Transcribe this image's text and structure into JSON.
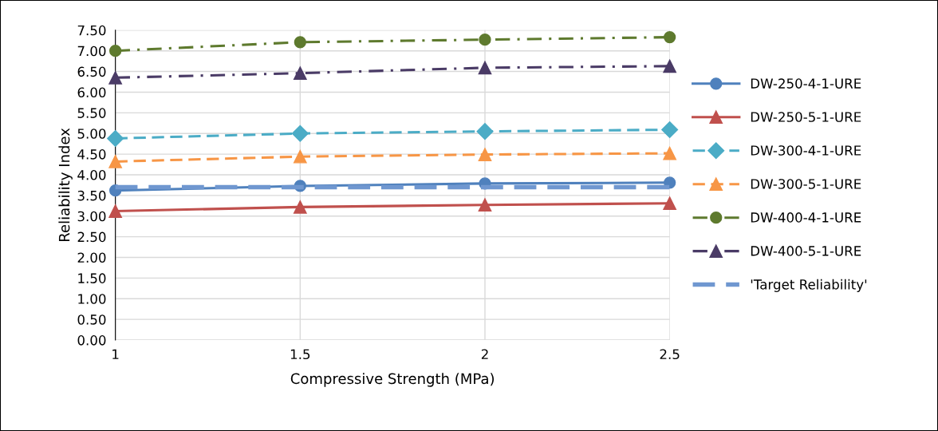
{
  "chart_data": {
    "type": "line",
    "xlabel": "Compressive Strength (MPa)",
    "ylabel": "Reliability Index",
    "x": [
      1,
      1.5,
      2,
      2.5
    ],
    "series": [
      {
        "name": "DW-250-4-1-URE",
        "color": "#4f81bd",
        "values": [
          3.62,
          3.73,
          3.79,
          3.81
        ],
        "marker": "circle",
        "line_style": "solid"
      },
      {
        "name": "DW-250-5-1-URE",
        "color": "#c0504d",
        "values": [
          3.12,
          3.22,
          3.27,
          3.31
        ],
        "marker": "triangle",
        "line_style": "solid"
      },
      {
        "name": "DW-300-4-1-URE",
        "color": "#4bacc6",
        "values": [
          4.88,
          5.0,
          5.05,
          5.09
        ],
        "marker": "diamond",
        "line_style": "dashed"
      },
      {
        "name": "DW-300-5-1-URE",
        "color": "#f79646",
        "values": [
          4.32,
          4.44,
          4.49,
          4.52
        ],
        "marker": "triangle",
        "line_style": "dashed"
      },
      {
        "name": "DW-400-4-1-URE",
        "color": "#5e7a2e",
        "values": [
          7.0,
          7.21,
          7.27,
          7.33
        ],
        "marker": "circle",
        "line_style": "dashdot"
      },
      {
        "name": "DW-400-5-1-URE",
        "color": "#4a3b66",
        "values": [
          6.35,
          6.46,
          6.59,
          6.63
        ],
        "marker": "triangle",
        "line_style": "dashdot"
      },
      {
        "name": "'Target Reliability'",
        "color": "#6f97d0",
        "values": [
          3.7,
          3.7,
          3.7,
          3.7
        ],
        "marker": "none",
        "line_style": "dashed"
      }
    ],
    "xlim": [
      1,
      2.5
    ],
    "xticks": [
      1,
      1.5,
      2,
      2.5
    ],
    "ylim": [
      0,
      7.5
    ],
    "yticks": [
      {
        "value": 0,
        "label": "0.00"
      },
      {
        "value": 0.5,
        "label": "0.50"
      },
      {
        "value": 1,
        "label": "1.00"
      },
      {
        "value": 1.5,
        "label": "1.50"
      },
      {
        "value": 2,
        "label": "2.00"
      },
      {
        "value": 2.5,
        "label": "2.50"
      },
      {
        "value": 3,
        "label": "3.00"
      },
      {
        "value": 3.5,
        "label": "3.50"
      },
      {
        "value": 4,
        "label": "4.00"
      },
      {
        "value": 4.5,
        "label": "4.50"
      },
      {
        "value": 5,
        "label": "5.00"
      },
      {
        "value": 5.5,
        "label": "5.50"
      },
      {
        "value": 6,
        "label": "6.00"
      },
      {
        "value": 6.5,
        "label": "6.50"
      },
      {
        "value": 7,
        "label": "7.00"
      },
      {
        "value": 7.5,
        "label": "7.50"
      }
    ],
    "grid": true,
    "legend": "right"
  }
}
